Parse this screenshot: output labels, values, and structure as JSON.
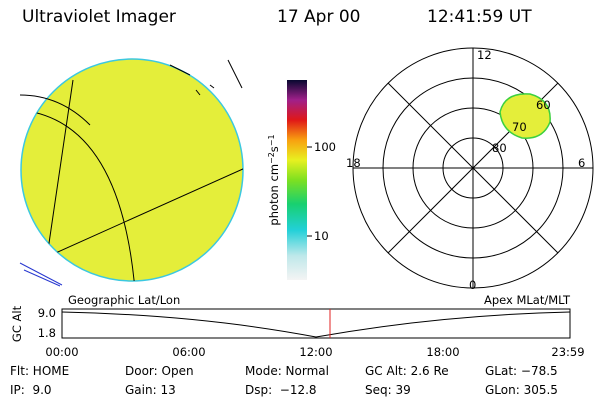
{
  "header": {
    "title": "Ultraviolet Imager",
    "date": "17 Apr 00",
    "time": "12:41:59 UT"
  },
  "colorbar": {
    "label": [
      "photon cm",
      "−2",
      "s",
      "−1"
    ],
    "ticks": [
      "100",
      "10"
    ]
  },
  "polar": {
    "mlt_labels": [
      "12",
      "18",
      "6",
      "0"
    ],
    "lat_labels": [
      "80",
      "70",
      "60"
    ]
  },
  "timeline": {
    "left_title": "Geographic Lat/Lon",
    "right_title": "Apex MLat/MLT",
    "y_label": "GC Alt",
    "y_ticks": [
      "9.0",
      "1.8"
    ],
    "x_ticks": [
      "00:00",
      "06:00",
      "12:00",
      "18:00",
      "23:59"
    ]
  },
  "info": {
    "rows": [
      [
        "Flt: HOME",
        "Door: Open",
        "Mode: Normal",
        "GC Alt: 2.6 Re",
        "GLat: −78.5"
      ],
      [
        "IP:  9.0",
        "Gain: 13",
        "Dsp:  −12.8",
        "Seq: 39",
        "GLon: 305.5"
      ]
    ]
  }
}
